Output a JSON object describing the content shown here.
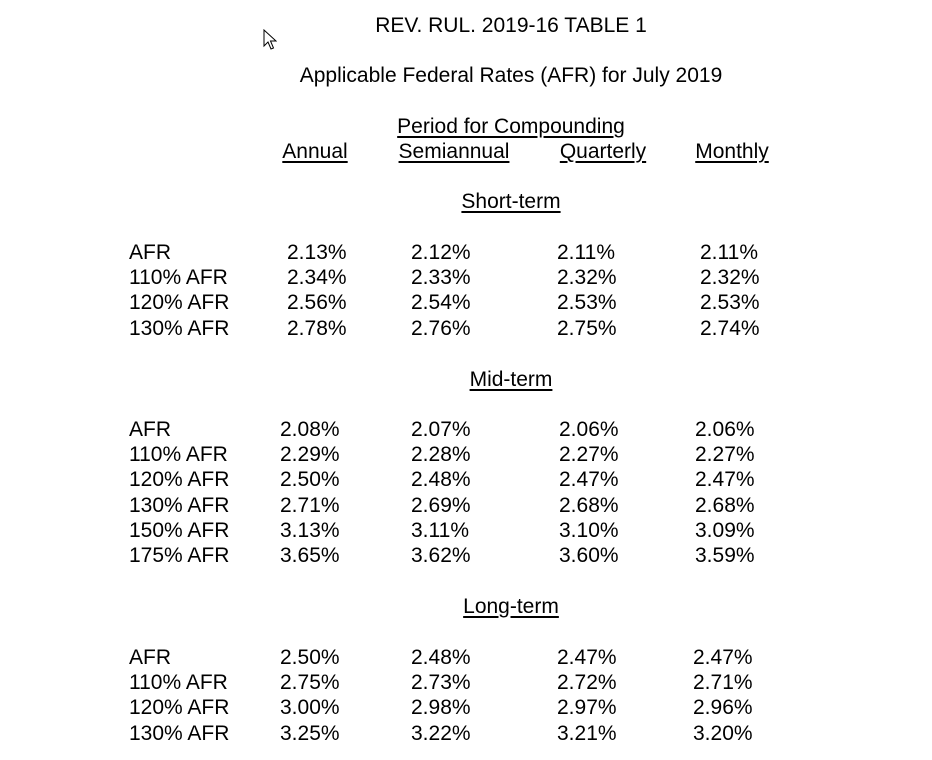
{
  "title": "REV. RUL. 2019-16 TABLE 1",
  "subtitle": "Applicable Federal Rates (AFR) for July 2019",
  "compounding_header": "Period for Compounding",
  "columns": [
    "Annual",
    "Semiannual",
    "Quarterly",
    "Monthly"
  ],
  "sections": [
    {
      "heading": "Short-term",
      "rows": [
        {
          "label": "AFR",
          "values": [
            "2.13%",
            "2.12%",
            "2.11%",
            "2.11%"
          ]
        },
        {
          "label": "110% AFR",
          "values": [
            "2.34%",
            "2.33%",
            "2.32%",
            "2.32%"
          ]
        },
        {
          "label": "120% AFR",
          "values": [
            "2.56%",
            "2.54%",
            "2.53%",
            "2.53%"
          ]
        },
        {
          "label": "130% AFR",
          "values": [
            "2.78%",
            "2.76%",
            "2.75%",
            "2.74%"
          ]
        }
      ]
    },
    {
      "heading": "Mid-term",
      "rows": [
        {
          "label": "AFR",
          "values": [
            "2.08%",
            "2.07%",
            "2.06%",
            "2.06%"
          ]
        },
        {
          "label": "110% AFR",
          "values": [
            "2.29%",
            "2.28%",
            "2.27%",
            "2.27%"
          ]
        },
        {
          "label": "120% AFR",
          "values": [
            "2.50%",
            "2.48%",
            "2.47%",
            "2.47%"
          ]
        },
        {
          "label": "130% AFR",
          "values": [
            "2.71%",
            "2.69%",
            "2.68%",
            "2.68%"
          ]
        },
        {
          "label": "150% AFR",
          "values": [
            "3.13%",
            "3.11%",
            "3.10%",
            "3.09%"
          ]
        },
        {
          "label": "175% AFR",
          "values": [
            "3.65%",
            "3.62%",
            "3.60%",
            "3.59%"
          ]
        }
      ]
    },
    {
      "heading": "Long-term",
      "rows": [
        {
          "label": "AFR",
          "values": [
            "2.50%",
            "2.48%",
            "2.47%",
            "2.47%"
          ]
        },
        {
          "label": "110% AFR",
          "values": [
            "2.75%",
            "2.73%",
            "2.72%",
            "2.71%"
          ]
        },
        {
          "label": "120% AFR",
          "values": [
            "3.00%",
            "2.98%",
            "2.97%",
            "2.96%"
          ]
        },
        {
          "label": "130% AFR",
          "values": [
            "3.25%",
            "3.22%",
            "3.21%",
            "3.20%"
          ]
        }
      ]
    }
  ]
}
